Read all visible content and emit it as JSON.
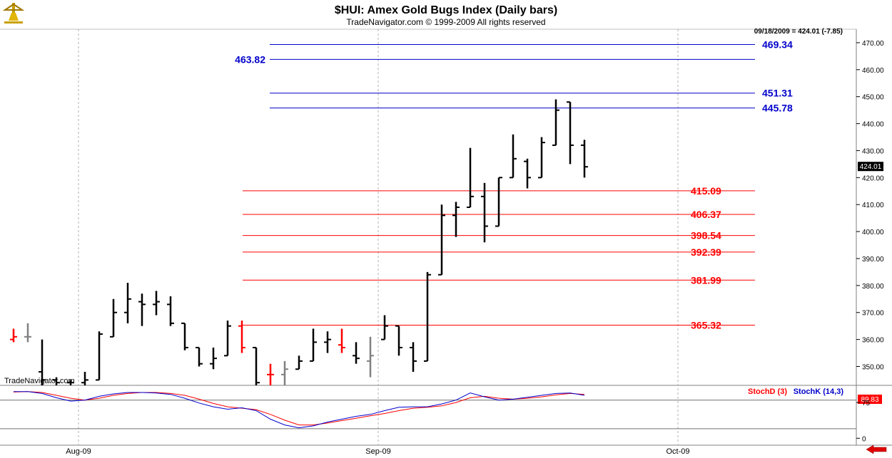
{
  "chart_data": {
    "type": "ohlc",
    "title": "$HUI:  Amex Gold Bugs Index  (Daily bars)",
    "subtitle": "TradeNavigator.com © 1999-2009 All rights reserved",
    "header_info": "09/18/2009 = 424.01 (-7.85)",
    "last_price_label": "424.01",
    "watermark": "TradeNavigator.com",
    "y_axis": {
      "min": 343,
      "max": 475,
      "ticks": [
        "470.00",
        "460.00",
        "450.00",
        "440.00",
        "430.00",
        "420.00",
        "410.00",
        "400.00",
        "390.00",
        "380.00",
        "370.00",
        "360.00",
        "350.00"
      ],
      "tick_values": [
        470,
        460,
        450,
        440,
        430,
        420,
        410,
        400,
        390,
        380,
        370,
        360,
        350
      ]
    },
    "x_axis": {
      "labels": [
        "Aug-09",
        "Sep-09",
        "Oct-09"
      ],
      "label_bar_index": [
        5,
        26,
        47
      ]
    },
    "colors": {
      "up_down_bar": "#000000",
      "red_bar": "#ff0000",
      "gray_bar": "#808080",
      "resistance": "#0000cc",
      "support": "#ff0000"
    },
    "bars": [
      {
        "o": 360,
        "h": 364,
        "l": 359,
        "c": 361,
        "color": "red"
      },
      {
        "o": 361,
        "h": 366,
        "l": 359,
        "c": 361,
        "color": "gray"
      },
      {
        "o": 348,
        "h": 360,
        "l": 343,
        "c": 345
      },
      {
        "o": 345,
        "h": 346,
        "l": 343,
        "c": 344
      },
      {
        "o": 344,
        "h": 345,
        "l": 343,
        "c": 344
      },
      {
        "o": 344,
        "h": 348,
        "l": 343,
        "c": 345
      },
      {
        "o": 345,
        "h": 363,
        "l": 345,
        "c": 362
      },
      {
        "o": 361,
        "h": 375,
        "l": 361,
        "c": 370
      },
      {
        "o": 370,
        "h": 381,
        "l": 366,
        "c": 375
      },
      {
        "o": 374,
        "h": 377,
        "l": 365,
        "c": 373
      },
      {
        "o": 373,
        "h": 378,
        "l": 369,
        "c": 374
      },
      {
        "o": 373,
        "h": 376,
        "l": 365,
        "c": 366
      },
      {
        "o": 366,
        "h": 366,
        "l": 356,
        "c": 357
      },
      {
        "o": 357,
        "h": 357,
        "l": 350,
        "c": 351
      },
      {
        "o": 351,
        "h": 357,
        "l": 349,
        "c": 353
      },
      {
        "o": 354,
        "h": 367,
        "l": 354,
        "c": 365
      },
      {
        "o": 365,
        "h": 367,
        "l": 355,
        "c": 357,
        "color": "red"
      },
      {
        "o": 357,
        "h": 357,
        "l": 343,
        "c": 344
      },
      {
        "o": 347,
        "h": 351,
        "l": 343,
        "c": 347,
        "color": "red"
      },
      {
        "o": 347,
        "h": 352,
        "l": 343,
        "c": 349,
        "color": "gray"
      },
      {
        "o": 349,
        "h": 354,
        "l": 349,
        "c": 352
      },
      {
        "o": 352,
        "h": 364,
        "l": 352,
        "c": 359
      },
      {
        "o": 359,
        "h": 363,
        "l": 355,
        "c": 360
      },
      {
        "o": 358,
        "h": 364,
        "l": 355,
        "c": 357,
        "color": "red"
      },
      {
        "o": 354,
        "h": 359,
        "l": 351,
        "c": 353
      },
      {
        "o": 352,
        "h": 361,
        "l": 346,
        "c": 354,
        "color": "gray"
      },
      {
        "o": 360,
        "h": 369,
        "l": 360,
        "c": 365
      },
      {
        "o": 365,
        "h": 365,
        "l": 354,
        "c": 357
      },
      {
        "o": 357,
        "h": 359,
        "l": 348,
        "c": 352
      },
      {
        "o": 352,
        "h": 385,
        "l": 352,
        "c": 384
      },
      {
        "o": 384,
        "h": 410,
        "l": 384,
        "c": 406
      },
      {
        "o": 406,
        "h": 411,
        "l": 398,
        "c": 409
      },
      {
        "o": 409,
        "h": 431,
        "l": 409,
        "c": 413
      },
      {
        "o": 413,
        "h": 418,
        "l": 396,
        "c": 402
      },
      {
        "o": 402,
        "h": 420,
        "l": 402,
        "c": 420
      },
      {
        "o": 420,
        "h": 436,
        "l": 420,
        "c": 427
      },
      {
        "o": 426,
        "h": 427,
        "l": 416,
        "c": 420
      },
      {
        "o": 420,
        "h": 435,
        "l": 420,
        "c": 433
      },
      {
        "o": 432,
        "h": 449,
        "l": 432,
        "c": 445
      },
      {
        "o": 448,
        "h": 448,
        "l": 425,
        "c": 432
      },
      {
        "o": 432,
        "h": 434,
        "l": 420,
        "c": 424
      }
    ],
    "levels": [
      {
        "value": 469.34,
        "label": "469.34",
        "color": "blue",
        "side": "right"
      },
      {
        "value": 463.82,
        "label": "463.82",
        "color": "blue",
        "side": "left"
      },
      {
        "value": 451.31,
        "label": "451.31",
        "color": "blue",
        "side": "right"
      },
      {
        "value": 445.78,
        "label": "445.78",
        "color": "blue",
        "side": "right"
      },
      {
        "value": 415.09,
        "label": "415.09",
        "color": "red",
        "side": "right"
      },
      {
        "value": 406.37,
        "label": "406.37",
        "color": "red",
        "side": "right"
      },
      {
        "value": 398.54,
        "label": "398.54",
        "color": "red",
        "side": "right"
      },
      {
        "value": 392.39,
        "label": "392.39",
        "color": "red",
        "side": "right"
      },
      {
        "value": 381.99,
        "label": "381.99",
        "color": "red",
        "side": "right"
      },
      {
        "value": 365.32,
        "label": "365.32",
        "color": "red",
        "side": "right"
      }
    ],
    "indicator": {
      "legend_d": "StochD (3)",
      "legend_k": "StochK (14,3)",
      "last_value_label": "89.83",
      "ticks": [
        "75",
        "0"
      ],
      "tick_values": [
        75,
        0
      ],
      "range": [
        -10,
        105
      ],
      "overbought": 80,
      "oversold": 20,
      "stoch_k": [
        98,
        98,
        94,
        85,
        78,
        80,
        88,
        93,
        96,
        96,
        95,
        92,
        84,
        74,
        66,
        61,
        64,
        58,
        40,
        28,
        22,
        26,
        34,
        40,
        46,
        50,
        58,
        65,
        66,
        66,
        72,
        80,
        95,
        87,
        80,
        82,
        86,
        90,
        94,
        95,
        90
      ],
      "stoch_d": [
        97,
        98,
        96,
        90,
        84,
        80,
        84,
        90,
        94,
        96,
        96,
        94,
        90,
        82,
        73,
        66,
        63,
        60,
        50,
        38,
        28,
        28,
        32,
        37,
        42,
        47,
        52,
        58,
        63,
        65,
        68,
        75,
        85,
        88,
        84,
        82,
        84,
        87,
        91,
        94,
        92
      ]
    }
  }
}
